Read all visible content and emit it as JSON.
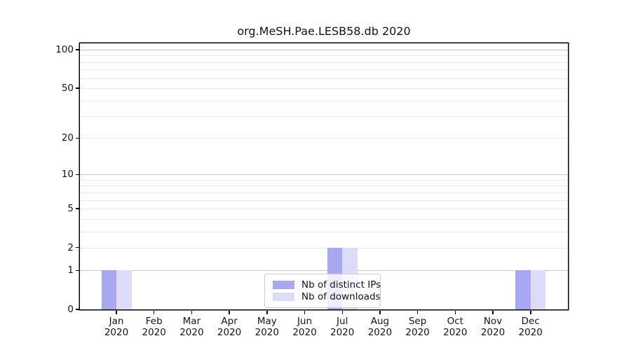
{
  "title": "org.MeSH.Pae.LESB58.db 2020",
  "colors": {
    "distinct_ips": "#a8a8f2",
    "downloads": "#dcdcf9",
    "grid_major": "#c9c9c9",
    "grid_minor": "#eaeaea",
    "axis": "#000000",
    "legend_border": "#cccccc"
  },
  "legend": {
    "items": [
      {
        "label": "Nb of distinct IPs",
        "color_key": "distinct_ips"
      },
      {
        "label": "Nb of downloads",
        "color_key": "downloads"
      }
    ]
  },
  "chart_data": {
    "type": "bar",
    "title": "org.MeSH.Pae.LESB58.db 2020",
    "categories": [
      "Jan 2020",
      "Feb 2020",
      "Mar 2020",
      "Apr 2020",
      "May 2020",
      "Jun 2020",
      "Jul 2020",
      "Aug 2020",
      "Sep 2020",
      "Oct 2020",
      "Nov 2020",
      "Dec 2020"
    ],
    "series": [
      {
        "name": "Nb of distinct IPs",
        "color_key": "distinct_ips",
        "values": [
          1,
          0,
          0,
          0,
          0,
          0,
          2,
          0,
          0,
          0,
          0,
          1
        ]
      },
      {
        "name": "Nb of downloads",
        "color_key": "downloads",
        "values": [
          1,
          0,
          0,
          0,
          0,
          0,
          2,
          0,
          0,
          0,
          0,
          1
        ]
      }
    ],
    "xlabel": "",
    "ylabel": "",
    "grid": "on",
    "legend_position": "inside-bottom-center",
    "y_axis": {
      "scale": "log1p",
      "min": 0,
      "max": 112,
      "tick_labels": [
        100,
        50,
        20,
        10,
        5,
        2,
        1,
        0
      ],
      "gridlines_major": [
        1,
        10,
        100
      ],
      "gridlines_minor": [
        2,
        3,
        4,
        5,
        6,
        7,
        8,
        9,
        20,
        30,
        40,
        50,
        60,
        70,
        80,
        90
      ]
    }
  }
}
